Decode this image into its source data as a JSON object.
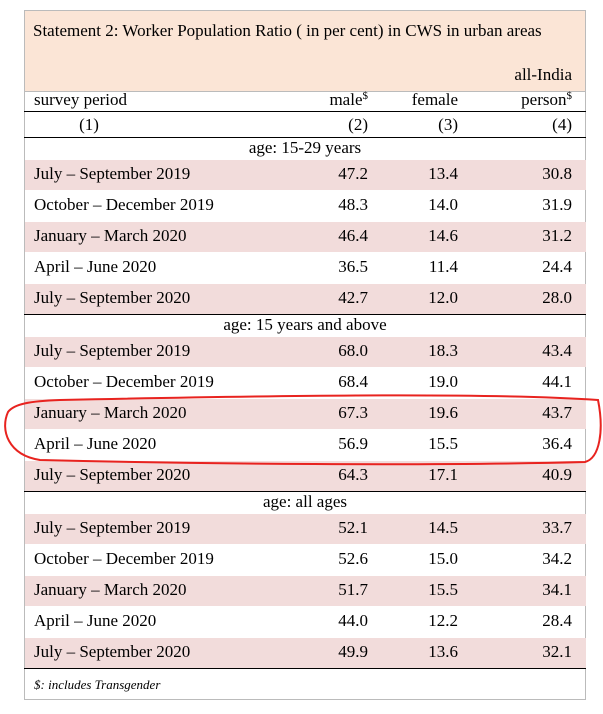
{
  "title": "Statement 2: Worker Population Ratio ( in per cent) in CWS in urban areas",
  "region": "all-India",
  "columns": [
    {
      "label": "survey period",
      "number": "(1)"
    },
    {
      "label": "male",
      "sup": "$",
      "number": "(2)"
    },
    {
      "label": "female",
      "number": "(3)"
    },
    {
      "label": "person",
      "sup": "$",
      "number": "(4)"
    }
  ],
  "sections": [
    {
      "label": "age: 15-29 years",
      "rows": [
        [
          "July – September 2019",
          "47.2",
          "13.4",
          "30.8"
        ],
        [
          "October – December 2019",
          "48.3",
          "14.0",
          "31.9"
        ],
        [
          "January – March 2020",
          "46.4",
          "14.6",
          "31.2"
        ],
        [
          "April – June 2020",
          "36.5",
          "11.4",
          "24.4"
        ],
        [
          "July – September 2020",
          "42.7",
          "12.0",
          "28.0"
        ]
      ]
    },
    {
      "label": "age: 15 years and above",
      "rows": [
        [
          "July – September 2019",
          "68.0",
          "18.3",
          "43.4"
        ],
        [
          "October – December 2019",
          "68.4",
          "19.0",
          "44.1"
        ],
        [
          "January – March 2020",
          "67.3",
          "19.6",
          "43.7"
        ],
        [
          "April – June 2020",
          "56.9",
          "15.5",
          "36.4"
        ],
        [
          "July – September 2020",
          "64.3",
          "17.1",
          "40.9"
        ]
      ]
    },
    {
      "label": "age: all ages",
      "rows": [
        [
          "July – September 2019",
          "52.1",
          "14.5",
          "33.7"
        ],
        [
          "October – December 2019",
          "52.6",
          "15.0",
          "34.2"
        ],
        [
          "January – March 2020",
          "51.7",
          "15.5",
          "34.1"
        ],
        [
          "April – June 2020",
          "44.0",
          "12.2",
          "28.4"
        ],
        [
          "July – September 2020",
          "49.9",
          "13.6",
          "32.1"
        ]
      ]
    }
  ],
  "footnote": "$: includes Transgender"
}
